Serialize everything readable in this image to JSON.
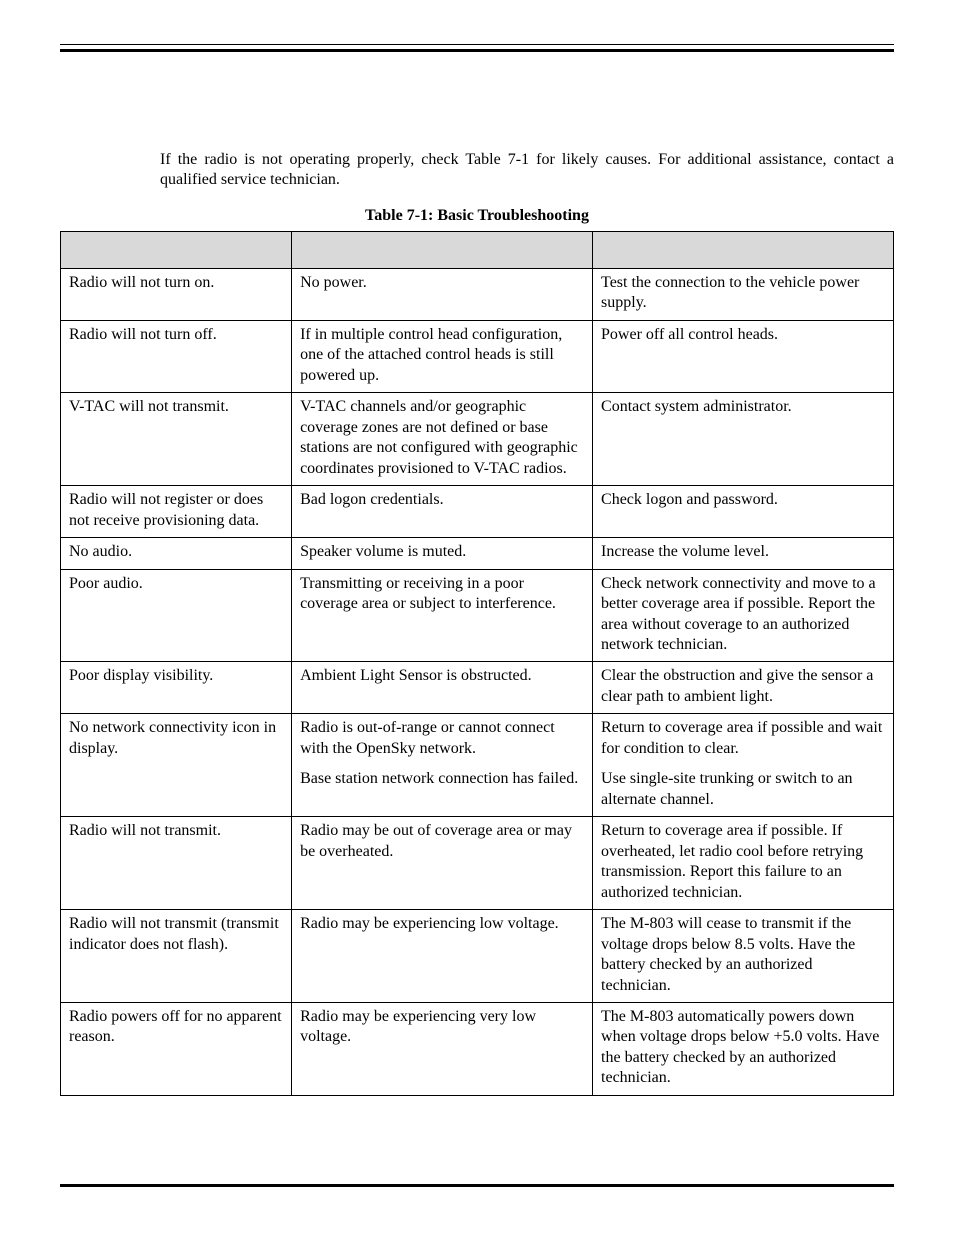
{
  "intro": "If the radio is not operating properly, check Table 7-1 for likely causes. For additional assistance, contact a qualified service technician.",
  "caption": "Table 7-1: Basic Troubleshooting",
  "colors": {
    "header_bg": "#d9d9d9",
    "border": "#000000",
    "text": "#000000",
    "page_bg": "#ffffff"
  },
  "table": {
    "columns": [
      "",
      "",
      ""
    ],
    "rows": [
      {
        "symptom": "Radio will not turn on.",
        "causes": [
          "No power."
        ],
        "actions": [
          "Test the connection to the vehicle power supply."
        ]
      },
      {
        "symptom": "Radio will not turn off.",
        "causes": [
          "If in multiple control head configuration, one of the attached control heads is still powered up."
        ],
        "actions": [
          "Power off all control heads."
        ]
      },
      {
        "symptom": "V-TAC will not transmit.",
        "causes": [
          "V-TAC channels and/or geographic coverage zones are not defined or base stations are not configured with geographic coordinates provisioned to V-TAC radios."
        ],
        "actions": [
          "Contact system administrator."
        ]
      },
      {
        "symptom": "Radio will not register or does not receive provisioning data.",
        "causes": [
          "Bad logon credentials."
        ],
        "actions": [
          "Check logon and password."
        ]
      },
      {
        "symptom": "No audio.",
        "causes": [
          "Speaker volume is muted."
        ],
        "actions": [
          "Increase the volume level."
        ]
      },
      {
        "symptom": "Poor audio.",
        "causes": [
          "Transmitting or receiving in a poor coverage area or subject to interference."
        ],
        "actions": [
          "Check network connectivity and move to a better coverage area if possible. Report the area without coverage to an authorized network technician."
        ]
      },
      {
        "symptom": "Poor display visibility.",
        "causes": [
          "Ambient Light Sensor is obstructed."
        ],
        "actions": [
          "Clear the obstruction and give the sensor a clear path to ambient light."
        ]
      },
      {
        "symptom": "No network connectivity icon in display.",
        "causes": [
          "Radio is out-of-range or cannot connect with the OpenSky network.",
          "Base station network connection has failed."
        ],
        "actions": [
          "Return to coverage area if possible and wait for condition to clear.",
          "Use single-site trunking or switch to an alternate channel."
        ]
      },
      {
        "symptom": "Radio will not transmit.",
        "causes": [
          "Radio may be out of coverage area or may be overheated."
        ],
        "actions": [
          "Return to coverage area if possible. If overheated, let radio cool before retrying transmission. Report this failure to an authorized technician."
        ]
      },
      {
        "symptom": "Radio will not transmit (transmit indicator does not flash).",
        "causes_justify": true,
        "causes": [
          "Radio may be experiencing low voltage."
        ],
        "actions": [
          "The M-803 will cease to transmit if the voltage drops below 8.5 volts. Have the battery checked by an authorized technician."
        ]
      },
      {
        "symptom": "Radio powers off for no apparent reason.",
        "causes": [
          "Radio may be experiencing very low voltage."
        ],
        "actions": [
          "The M-803 automatically powers down when voltage drops below +5.0 volts. Have the battery checked by an authorized technician."
        ]
      }
    ]
  }
}
